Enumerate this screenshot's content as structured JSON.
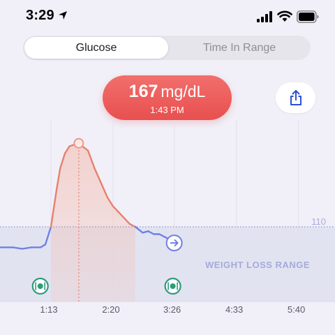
{
  "status_bar": {
    "time": "3:29",
    "icons": [
      "location-arrow-icon",
      "cellular-signal-icon",
      "wifi-icon",
      "battery-icon"
    ]
  },
  "tabs": [
    {
      "label": "Glucose",
      "selected": true
    },
    {
      "label": "Time In Range",
      "selected": false
    }
  ],
  "reading": {
    "value": "167",
    "unit": "mg/dL",
    "time": "1:43 PM"
  },
  "share_button": {
    "icon": "share-icon"
  },
  "colors": {
    "background": "#f1f0f8",
    "pill": "#ec5e5d",
    "high_line": "#e8806f",
    "normal_line": "#6f80e6",
    "range_band": "#dfe1f0",
    "meal_icon": "#2e9c78"
  },
  "chart_data": {
    "type": "line",
    "x_ticks": [
      "1:13",
      "2:20",
      "3:26",
      "4:33",
      "5:40"
    ],
    "threshold": {
      "value": 110,
      "label": "110"
    },
    "range_band_label": "WEIGHT LOSS RANGE",
    "series": [
      {
        "x": [
          "0:12",
          "0:32",
          "0:42",
          "0:52",
          "1:02",
          "1:07",
          "1:13",
          "1:19",
          "1:23",
          "1:28",
          "1:33",
          "1:43",
          "1:53",
          "2:00",
          "2:07",
          "2:14",
          "2:20",
          "2:26",
          "2:32",
          "2:38",
          "2:44",
          "2:52",
          "2:58",
          "3:04",
          "3:10",
          "3:16",
          "3:22",
          "3:26"
        ],
        "y": [
          96,
          96,
          95,
          96,
          96,
          98,
          110,
          135,
          150,
          160,
          165,
          167,
          162,
          150,
          140,
          130,
          124,
          120,
          116,
          112,
          110,
          106,
          107,
          105,
          105,
          103,
          101,
          99
        ]
      }
    ],
    "peak": {
      "x": "1:43",
      "y": 167
    },
    "end_marker": {
      "x": "3:26",
      "y": 99,
      "icon": "arrow-right-icon"
    },
    "meals": [
      {
        "x": "1:03",
        "icon": "meal-icon"
      },
      {
        "x": "3:26",
        "icon": "meal-icon"
      }
    ],
    "grid": true
  }
}
